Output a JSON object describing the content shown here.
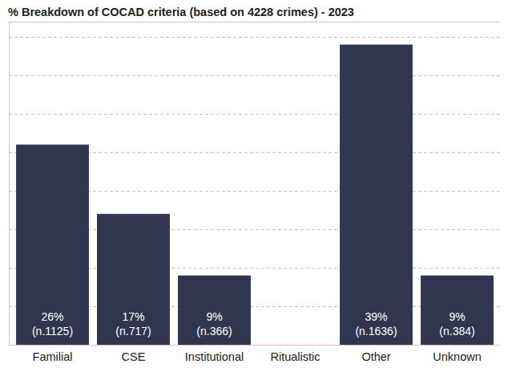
{
  "chart_data": {
    "type": "bar",
    "title": "% Breakdown of COCAD criteria (based on 4228 crimes) - 2023",
    "categories": [
      "Familial",
      "CSE",
      "Institutional",
      "Ritualistic",
      "Other",
      "Unknown"
    ],
    "values": [
      26,
      17,
      9,
      null,
      39,
      9
    ],
    "value_labels": [
      "26%",
      "17%",
      "9%",
      null,
      "39%",
      "9%"
    ],
    "count_labels": [
      "(n.1125)",
      "(n.717)",
      "(n.366)",
      null,
      "(n.1636)",
      "(n.384)"
    ],
    "color": "#313650",
    "ylim": [
      0,
      42
    ],
    "yticks": [
      0,
      5,
      10,
      15,
      20,
      25,
      30,
      35,
      40
    ],
    "grid": true,
    "data_labels": true,
    "tick_labels": "x"
  }
}
